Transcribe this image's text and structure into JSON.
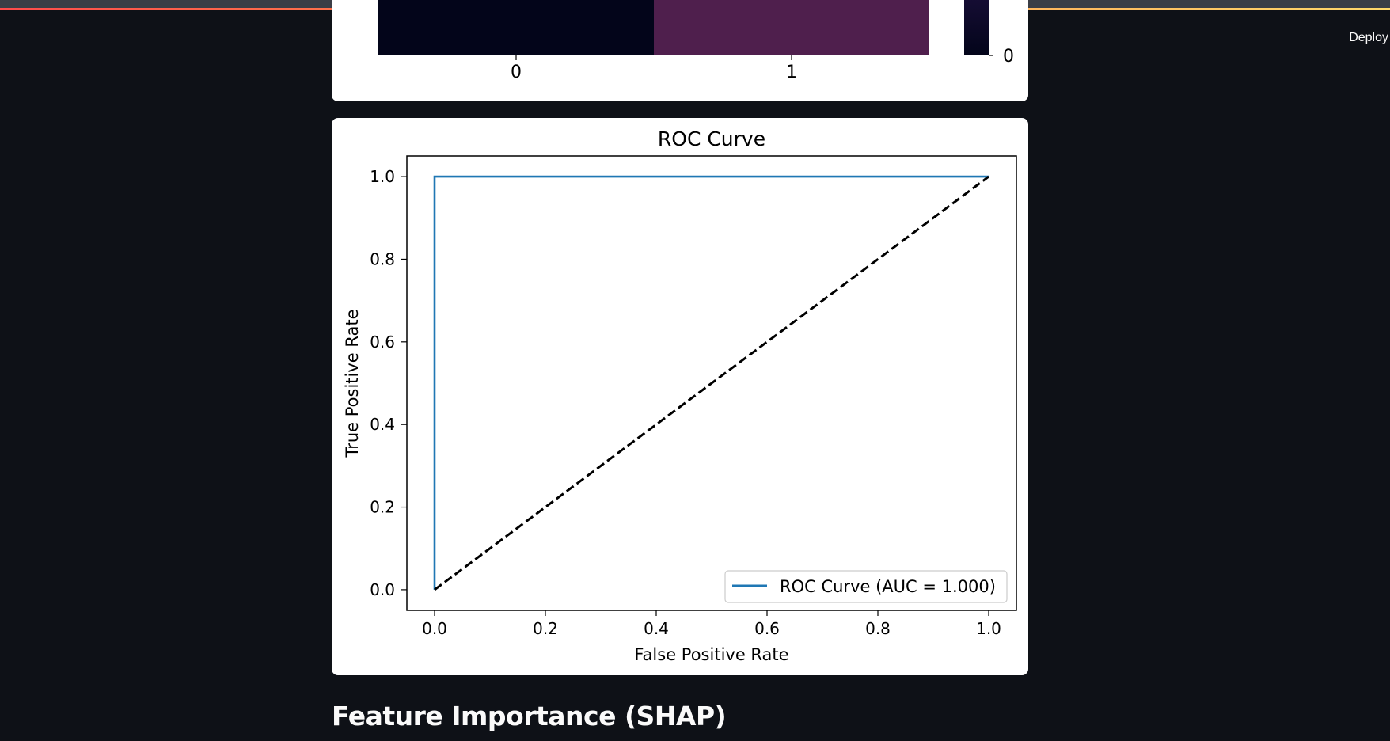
{
  "header": {
    "deploy_label": "Deploy"
  },
  "confusion_matrix": {
    "x_ticks": [
      "0",
      "1"
    ],
    "colorbar_tick": "0",
    "cell_colors": [
      "#03051a",
      "#4f1f4d"
    ]
  },
  "chart_data": {
    "type": "line",
    "title": "ROC Curve",
    "xlabel": "False Positive Rate",
    "ylabel": "True Positive Rate",
    "xlim": [
      -0.05,
      1.05
    ],
    "ylim": [
      -0.05,
      1.05
    ],
    "x_ticks": [
      "0.0",
      "0.2",
      "0.4",
      "0.6",
      "0.8",
      "1.0"
    ],
    "y_ticks": [
      "0.0",
      "0.2",
      "0.4",
      "0.6",
      "0.8",
      "1.0"
    ],
    "grid": false,
    "legend_position": "lower-right",
    "series": [
      {
        "name": "ROC Curve (AUC = 1.000)",
        "x": [
          0.0,
          0.0,
          1.0
        ],
        "y": [
          0.0,
          1.0,
          1.0
        ],
        "color": "#1f77b4",
        "style": "solid"
      },
      {
        "x": [
          0.0,
          1.0
        ],
        "y": [
          0.0,
          1.0
        ],
        "color": "#000000",
        "style": "dashed"
      }
    ]
  },
  "main": {
    "section_heading": "Feature Importance (SHAP)"
  }
}
